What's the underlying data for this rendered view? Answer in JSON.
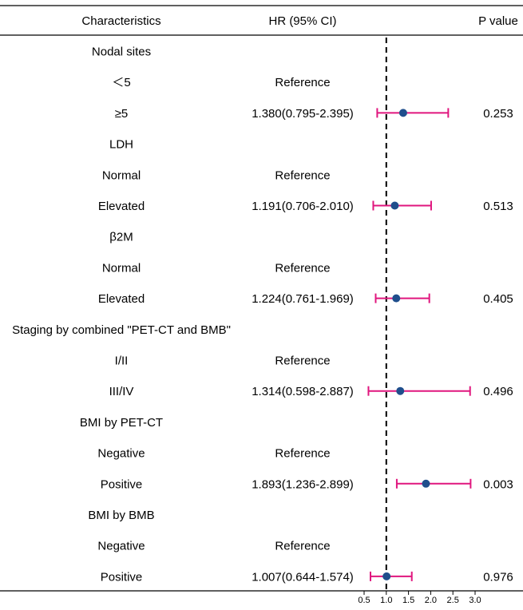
{
  "chart_data": {
    "type": "forest",
    "headers": {
      "characteristics": "Characteristics",
      "hr": "HR (95% CI)",
      "p": "P value"
    },
    "rows": [
      {
        "label": "Nodal sites",
        "kind": "group"
      },
      {
        "label": "＜5",
        "kind": "ref",
        "hr_text": "Reference"
      },
      {
        "label": "≥5",
        "kind": "estimate",
        "hr_text": "1.380(0.795-2.395)",
        "hr": 1.38,
        "lo": 0.795,
        "hi": 2.395,
        "p": "0.253"
      },
      {
        "label": "LDH",
        "kind": "group"
      },
      {
        "label": "Normal",
        "kind": "ref",
        "hr_text": "Reference"
      },
      {
        "label": "Elevated",
        "kind": "estimate",
        "hr_text": "1.191(0.706-2.010)",
        "hr": 1.191,
        "lo": 0.706,
        "hi": 2.01,
        "p": "0.513"
      },
      {
        "label": "β2M",
        "kind": "group"
      },
      {
        "label": "Normal",
        "kind": "ref",
        "hr_text": "Reference"
      },
      {
        "label": "Elevated",
        "kind": "estimate",
        "hr_text": "1.224(0.761-1.969)",
        "hr": 1.224,
        "lo": 0.761,
        "hi": 1.969,
        "p": "0.405"
      },
      {
        "label": "Staging by combined \"PET-CT and BMB\"",
        "kind": "group"
      },
      {
        "label": "I/II",
        "kind": "ref",
        "hr_text": "Reference"
      },
      {
        "label": "III/IV",
        "kind": "estimate",
        "hr_text": "1.314(0.598-2.887)",
        "hr": 1.314,
        "lo": 0.598,
        "hi": 2.887,
        "p": "0.496"
      },
      {
        "label": "BMI by PET-CT",
        "kind": "group"
      },
      {
        "label": "Negative",
        "kind": "ref",
        "hr_text": "Reference"
      },
      {
        "label": "Positive",
        "kind": "estimate",
        "hr_text": "1.893(1.236-2.899)",
        "hr": 1.893,
        "lo": 1.236,
        "hi": 2.899,
        "p": "0.003"
      },
      {
        "label": "BMI by BMB",
        "kind": "group"
      },
      {
        "label": "Negative",
        "kind": "ref",
        "hr_text": "Reference"
      },
      {
        "label": "Positive",
        "kind": "estimate",
        "hr_text": "1.007(0.644-1.574)",
        "hr": 1.007,
        "lo": 0.644,
        "hi": 1.574,
        "p": "0.976"
      }
    ],
    "x_ticks": [
      0.5,
      1.0,
      1.5,
      2.0,
      2.5,
      3.0
    ],
    "x_tick_labels": [
      "0.5",
      "1.0",
      "1.5",
      "2.0",
      "2.5",
      "3.0"
    ],
    "xlim": [
      0.5,
      3.0
    ],
    "reference_line": 1.0,
    "colors": {
      "ci": "#e0167e",
      "point": "#1f4e8c",
      "reference_line": "#000000",
      "rule": "#000000"
    }
  }
}
